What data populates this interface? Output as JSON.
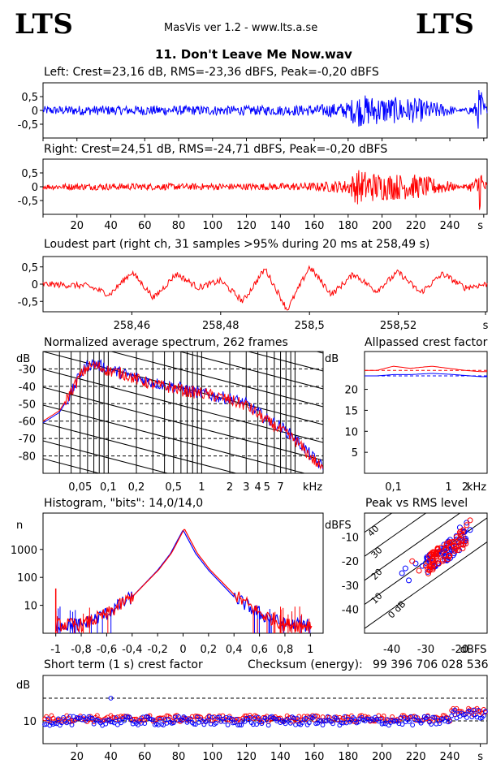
{
  "header": {
    "logo_left": "LTS",
    "logo_right": "LTS",
    "app_title": "MasVis ver 1.2 - www.lts.a.se",
    "file_title": "11. Don't Leave Me Now.wav"
  },
  "panels": {
    "left": {
      "title": "Left: Crest=23,16 dB, RMS=-23,36 dBFS, Peak=-0,20 dBFS"
    },
    "right": {
      "title": "Right: Crest=24,51 dB, RMS=-24,71 dBFS, Peak=-0,20 dBFS"
    },
    "loudest": {
      "title": "Loudest part (right ch, 31 samples >95% during 20 ms at 258,49 s)"
    },
    "spectrum": {
      "title": "Normalized average spectrum, 262 frames"
    },
    "allpass": {
      "title": "Allpassed crest factor"
    },
    "histogram": {
      "title": "Histogram, \"bits\": 14,0/14,0"
    },
    "peakrms": {
      "title": "Peak vs RMS level"
    },
    "shortterm": {
      "title": "Short term (1 s) crest factor",
      "checksum_label": "Checksum (energy):",
      "checksum_value": "99 396 706 028 536"
    }
  },
  "chart_data": [
    {
      "id": "left-waveform",
      "type": "line",
      "title": "Left: Crest=23,16 dB, RMS=-23,36 dBFS, Peak=-0,20 dBFS",
      "ylim": [
        -1,
        1
      ],
      "yticks": [
        "0,5",
        "0",
        "-0,5"
      ],
      "xlim": [
        0,
        262
      ],
      "envelope_x": [
        0,
        20,
        40,
        60,
        80,
        100,
        120,
        140,
        160,
        180,
        185,
        200,
        220,
        240,
        245,
        250,
        255,
        258,
        260,
        262
      ],
      "envelope_amp": [
        0.15,
        0.18,
        0.17,
        0.18,
        0.17,
        0.18,
        0.17,
        0.18,
        0.2,
        0.3,
        0.6,
        0.5,
        0.45,
        0.2,
        0.05,
        0.1,
        0.3,
        0.98,
        0.4,
        0.1
      ],
      "color": "#0000ff"
    },
    {
      "id": "right-waveform",
      "type": "line",
      "title": "Right: Crest=24,51 dB, RMS=-24,71 dBFS, Peak=-0,20 dBFS",
      "ylim": [
        -1,
        1
      ],
      "yticks": [
        "0,5",
        "0",
        "-0,5"
      ],
      "xlim": [
        0,
        262
      ],
      "xticks": [
        "20",
        "40",
        "60",
        "80",
        "100",
        "120",
        "140",
        "160",
        "180",
        "200",
        "220",
        "240",
        "s"
      ],
      "envelope_x": [
        0,
        20,
        40,
        60,
        80,
        100,
        120,
        140,
        160,
        180,
        185,
        200,
        220,
        240,
        245,
        250,
        255,
        258,
        260,
        262
      ],
      "envelope_amp": [
        0.1,
        0.12,
        0.12,
        0.12,
        0.12,
        0.12,
        0.12,
        0.13,
        0.15,
        0.25,
        0.65,
        0.5,
        0.45,
        0.2,
        0.05,
        0.1,
        0.3,
        0.98,
        0.4,
        0.1
      ],
      "color": "#ff0000"
    },
    {
      "id": "loudest-part",
      "type": "line",
      "title": "Loudest part (right ch, 31 samples >95% during 20 ms at 258,49 s)",
      "ylim": [
        -0.8,
        0.8
      ],
      "yticks": [
        "0,5",
        "0",
        "-0,5"
      ],
      "xlim": [
        258.44,
        258.54
      ],
      "xticks": [
        "258,46",
        "258,48",
        "258,5",
        "258,52",
        "s"
      ],
      "x": [
        258.44,
        258.45,
        258.455,
        258.46,
        258.465,
        258.47,
        258.475,
        258.48,
        258.485,
        258.49,
        258.495,
        258.5,
        258.505,
        258.51,
        258.515,
        258.52,
        258.525,
        258.53,
        258.535,
        258.54
      ],
      "y": [
        0.0,
        -0.05,
        -0.3,
        0.35,
        -0.4,
        0.3,
        -0.1,
        0.1,
        -0.5,
        0.45,
        -0.75,
        0.5,
        -0.3,
        0.3,
        -0.2,
        0.35,
        -0.25,
        0.3,
        -0.1,
        0.0
      ],
      "color": "#ff0000"
    },
    {
      "id": "spectrum",
      "type": "line",
      "title": "Normalized average spectrum, 262 frames",
      "ylabel": "dB",
      "yticks": [
        "-30",
        "-40",
        "-50",
        "-60",
        "-70",
        "-80"
      ],
      "ylim": [
        -90,
        -20
      ],
      "xticks": [
        "0,05",
        "0,1",
        "0,2",
        "0,5",
        "1",
        "2",
        "3",
        "4",
        "5",
        "7",
        "kHz"
      ],
      "x_khz": [
        0.02,
        0.03,
        0.04,
        0.05,
        0.06,
        0.07,
        0.08,
        0.1,
        0.15,
        0.2,
        0.3,
        0.5,
        0.7,
        1,
        1.5,
        2,
        3,
        4,
        5,
        7,
        10,
        15,
        20
      ],
      "series": [
        {
          "values": [
            -61,
            -55,
            -44,
            -33,
            -28,
            -27,
            -28,
            -30,
            -33,
            -35,
            -38,
            -40,
            -42,
            -44,
            -46,
            -47,
            -50,
            -55,
            -59,
            -63,
            -70,
            -80,
            -87
          ],
          "color": "#0000ff"
        },
        {
          "values": [
            -60,
            -54,
            -43,
            -34,
            -29,
            -28,
            -29,
            -31,
            -33,
            -36,
            -39,
            -41,
            -43,
            -44,
            -46,
            -48,
            -51,
            -56,
            -60,
            -65,
            -71,
            -81,
            -88
          ],
          "color": "#ff0000"
        }
      ]
    },
    {
      "id": "allpassed-crest",
      "type": "line",
      "title": "Allpassed crest factor",
      "ylabel": "dB",
      "yticks": [
        "20",
        "15",
        "10",
        "5"
      ],
      "ylim": [
        0,
        29
      ],
      "xticks": [
        "0,1",
        "1",
        "2",
        "kHz"
      ],
      "x_khz": [
        0.05,
        0.1,
        0.2,
        0.5,
        1,
        2,
        4
      ],
      "series": [
        {
          "values": [
            24.5,
            25.5,
            25.0,
            25.5,
            25.0,
            24.5,
            24.2
          ],
          "color": "#ff0000",
          "style": "solid"
        },
        {
          "values": [
            23.2,
            23.5,
            23.5,
            23.8,
            23.6,
            23.3,
            23.0
          ],
          "color": "#0000ff",
          "style": "solid"
        },
        {
          "values": [
            24.5,
            24.5,
            24.5,
            24.5,
            24.5,
            24.5,
            24.5
          ],
          "color": "#ff0000",
          "style": "dashed"
        },
        {
          "values": [
            23.2,
            23.2,
            23.2,
            23.2,
            23.2,
            23.2,
            23.2
          ],
          "color": "#0000ff",
          "style": "dashed"
        }
      ]
    },
    {
      "id": "histogram",
      "type": "line",
      "title": "Histogram, \"bits\": 14,0/14,0",
      "ylabel": "n",
      "yticks": [
        "1000",
        "100",
        "10"
      ],
      "yscale": "log",
      "ylim": [
        1,
        20000
      ],
      "xlim": [
        -1.1,
        1.1
      ],
      "xticks": [
        "-1",
        "-0,8",
        "-0,6",
        "-0,4",
        "-0,2",
        "0",
        "0,2",
        "0,4",
        "0,6",
        "0,8",
        "1"
      ],
      "x": [
        -1.0,
        -0.8,
        -0.6,
        -0.4,
        -0.3,
        -0.2,
        -0.1,
        0.0,
        0.1,
        0.2,
        0.3,
        0.4,
        0.6,
        0.8,
        1.0
      ],
      "series": [
        {
          "values": [
            2,
            2,
            5,
            20,
            60,
            180,
            700,
            5000,
            700,
            180,
            60,
            20,
            5,
            2,
            2
          ],
          "color": "#0000ff"
        },
        {
          "values": [
            2,
            2,
            5,
            22,
            65,
            190,
            750,
            5500,
            750,
            190,
            65,
            22,
            5,
            2,
            2
          ],
          "color": "#ff0000"
        }
      ]
    },
    {
      "id": "peak-vs-rms",
      "type": "scatter",
      "title": "Peak vs RMS level",
      "ylabel": "dBFS",
      "xlabel": "dBFS",
      "yticks": [
        "-10",
        "-20",
        "-30",
        "-40"
      ],
      "xticks": [
        "-40",
        "-30",
        "-20"
      ],
      "xlim": [
        -48,
        -12
      ],
      "ylim": [
        -50,
        0
      ],
      "diagonal_labels": [
        "40",
        "30",
        "20",
        "10",
        "0 dB"
      ],
      "series": [
        {
          "color": "#0000ff",
          "x": [
            -37,
            -36,
            -33,
            -31,
            -29,
            -28,
            -26,
            -25,
            -24,
            -23,
            -22,
            -21,
            -20,
            -19,
            -18,
            -17,
            -35
          ],
          "y": [
            -25,
            -23,
            -21,
            -22,
            -20,
            -19,
            -17,
            -16,
            -18,
            -16,
            -12,
            -11,
            -6,
            -8,
            -4,
            -7,
            -28
          ]
        },
        {
          "color": "#ff0000",
          "x": [
            -34,
            -32,
            -30,
            -29,
            -28,
            -27,
            -26,
            -25,
            -24,
            -23,
            -22,
            -21,
            -20,
            -19,
            -18,
            -17
          ],
          "y": [
            -20,
            -24,
            -22,
            -18,
            -21,
            -19,
            -17,
            -20,
            -15,
            -14,
            -12,
            -10,
            -8,
            -7,
            -5,
            -3
          ]
        }
      ]
    },
    {
      "id": "short-term-crest",
      "type": "scatter",
      "title": "Short term (1 s) crest factor",
      "ylabel": "dB",
      "yticks": [
        "10"
      ],
      "ylim": [
        0,
        30
      ],
      "xlim": [
        0,
        262
      ],
      "xticks": [
        "20",
        "40",
        "60",
        "80",
        "100",
        "120",
        "140",
        "160",
        "180",
        "200",
        "220",
        "240",
        "s"
      ],
      "series": [
        {
          "color": "#ff0000",
          "mean": 11,
          "spread": 3
        },
        {
          "color": "#0000ff",
          "mean": 10,
          "spread": 4
        }
      ],
      "outlier": {
        "x": 40,
        "y": 20
      }
    }
  ]
}
